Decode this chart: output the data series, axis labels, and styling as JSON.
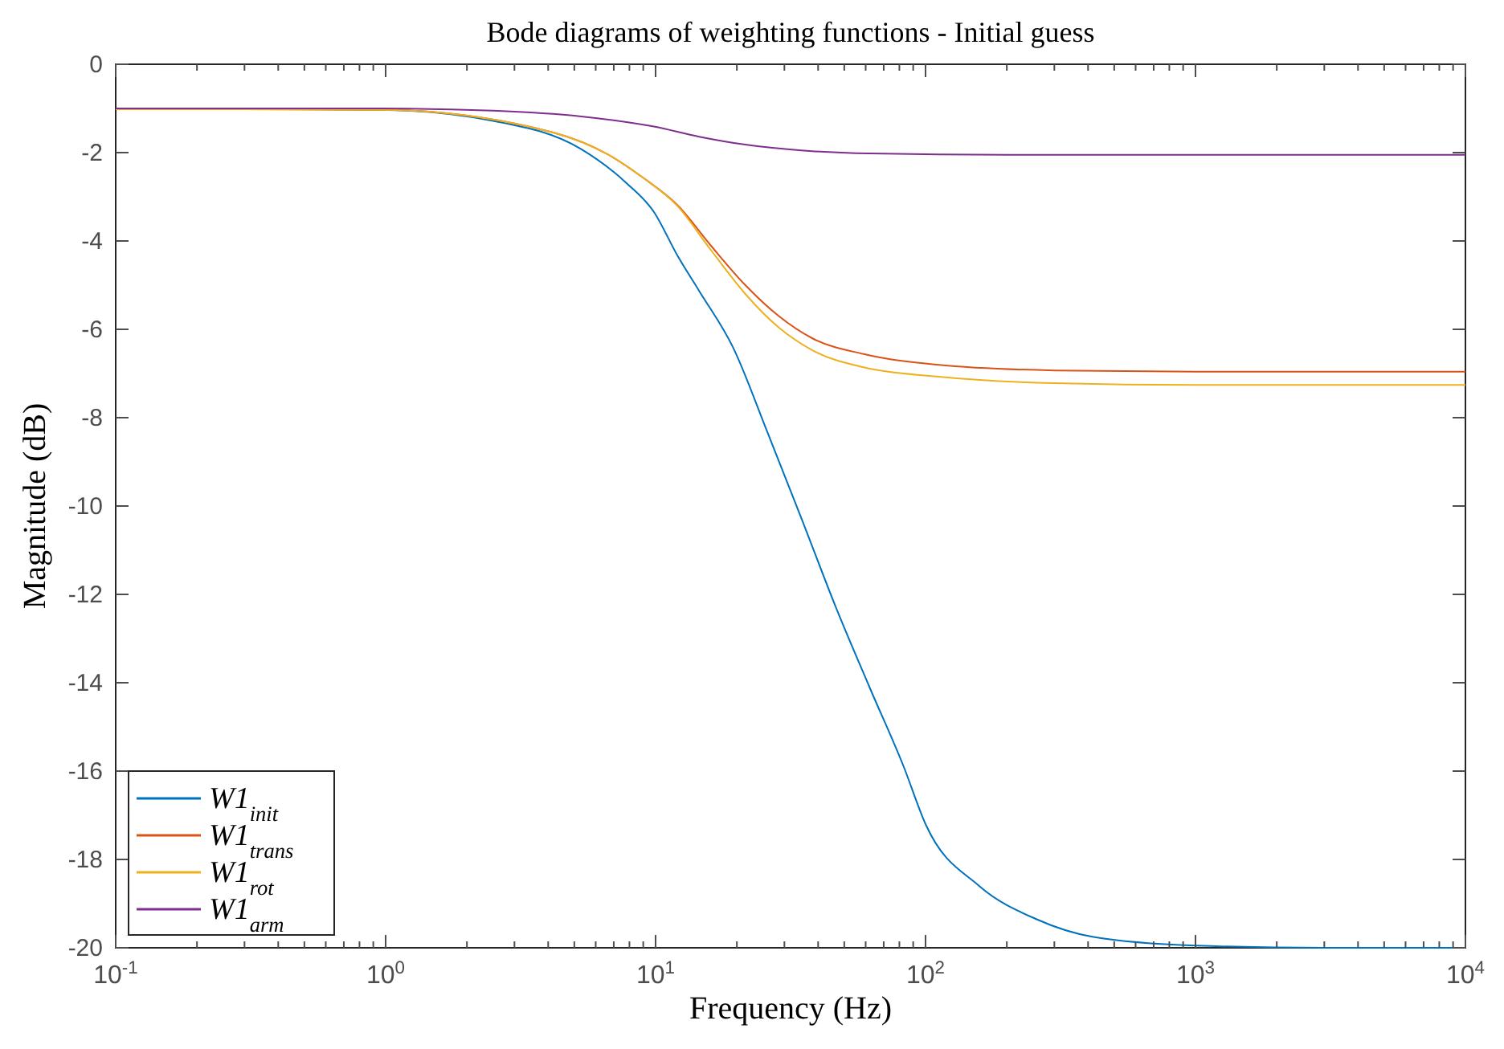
{
  "chart_data": {
    "type": "line",
    "title": "Bode diagrams of weighting functions - Initial guess",
    "xlabel": "Frequency (Hz)",
    "ylabel": "Magnitude (dB)",
    "log": "x",
    "xlim": [
      0.1,
      10000
    ],
    "ylim": [
      -20,
      0
    ],
    "xticks": [
      {
        "value": 0.1,
        "label": "10$^{-1}$"
      },
      {
        "value": 0.2,
        "label": null
      },
      {
        "value": 0.3,
        "label": null
      },
      {
        "value": 0.4,
        "label": null
      },
      {
        "value": 0.5,
        "label": null
      },
      {
        "value": 0.6,
        "label": null
      },
      {
        "value": 0.7,
        "label": null
      },
      {
        "value": 0.8,
        "label": null
      },
      {
        "value": 0.9,
        "label": null
      },
      {
        "value": 1,
        "label": "10$^{0}$"
      },
      {
        "value": 2,
        "label": null
      },
      {
        "value": 3,
        "label": null
      },
      {
        "value": 4,
        "label": null
      },
      {
        "value": 5,
        "label": null
      },
      {
        "value": 6,
        "label": null
      },
      {
        "value": 7,
        "label": null
      },
      {
        "value": 8,
        "label": null
      },
      {
        "value": 9,
        "label": null
      },
      {
        "value": 10,
        "label": "10$^{1}$"
      },
      {
        "value": 20,
        "label": null
      },
      {
        "value": 30,
        "label": null
      },
      {
        "value": 40,
        "label": null
      },
      {
        "value": 50,
        "label": null
      },
      {
        "value": 60,
        "label": null
      },
      {
        "value": 70,
        "label": null
      },
      {
        "value": 80,
        "label": null
      },
      {
        "value": 90,
        "label": null
      },
      {
        "value": 100,
        "label": "10$^{2}$"
      },
      {
        "value": 200,
        "label": null
      },
      {
        "value": 300,
        "label": null
      },
      {
        "value": 400,
        "label": null
      },
      {
        "value": 500,
        "label": null
      },
      {
        "value": 600,
        "label": null
      },
      {
        "value": 700,
        "label": null
      },
      {
        "value": 800,
        "label": null
      },
      {
        "value": 900,
        "label": null
      },
      {
        "value": 1000,
        "label": "10$^{3}$"
      },
      {
        "value": 2000,
        "label": null
      },
      {
        "value": 3000,
        "label": null
      },
      {
        "value": 4000,
        "label": null
      },
      {
        "value": 5000,
        "label": null
      },
      {
        "value": 6000,
        "label": null
      },
      {
        "value": 7000,
        "label": null
      },
      {
        "value": 8000,
        "label": null
      },
      {
        "value": 9000,
        "label": null
      },
      {
        "value": 10000,
        "label": "10$^{4}$"
      }
    ],
    "yticks": [
      0,
      -2,
      -4,
      -6,
      -8,
      -10,
      -12,
      -14,
      -16,
      -18,
      -20
    ],
    "grid": false,
    "legend": "bottom left",
    "series": [
      {
        "name": "W1$_{init}$",
        "color": "#0072bd",
        "x": [
          0.1,
          0.3,
          0.97,
          2.5,
          5.3,
          7.8,
          9.85,
          12.1,
          14.5,
          19.4,
          26,
          34.6,
          46.6,
          62,
          83,
          100,
          158,
          257,
          415,
          1000,
          3000,
          10000
        ],
        "values": [
          -1.0,
          -1.01,
          -1.03,
          -1.28,
          -1.92,
          -2.69,
          -3.34,
          -4.35,
          -5.13,
          -6.42,
          -8.34,
          -10.26,
          -12.3,
          -14.1,
          -15.9,
          -17.2,
          -18.6,
          -19.35,
          -19.75,
          -19.95,
          -20.0,
          -20.0
        ]
      },
      {
        "name": "W1$_{trans}$",
        "color": "#d95319",
        "x": [
          0.1,
          0.3,
          0.97,
          4.15,
          6.7,
          8.95,
          12.1,
          16,
          21.5,
          28.6,
          38,
          59,
          110,
          300,
          1000,
          10000
        ],
        "values": [
          -1.02,
          -1.02,
          -1.03,
          -1.54,
          -2.05,
          -2.56,
          -3.2,
          -4.1,
          -5.0,
          -5.7,
          -6.2,
          -6.56,
          -6.8,
          -6.93,
          -6.96,
          -6.96
        ]
      },
      {
        "name": "W1$_{rot}$",
        "color": "#edb120",
        "x": [
          0.1,
          0.3,
          0.97,
          4.15,
          6.7,
          8.95,
          12.1,
          16,
          21.5,
          28.6,
          38,
          59,
          110,
          300,
          1000,
          10000
        ],
        "values": [
          -1.02,
          -1.02,
          -1.03,
          -1.54,
          -2.05,
          -2.56,
          -3.22,
          -4.2,
          -5.2,
          -5.96,
          -6.47,
          -6.86,
          -7.07,
          -7.22,
          -7.26,
          -7.26
        ]
      },
      {
        "name": "W1$_{arm}$",
        "color": "#7e2f8e",
        "x": [
          0.1,
          0.97,
          2.5,
          5.3,
          9.85,
          14.5,
          21.5,
          34.6,
          62,
          200,
          1000,
          10000
        ],
        "values": [
          -1.0,
          -1.0,
          -1.05,
          -1.18,
          -1.41,
          -1.64,
          -1.82,
          -1.95,
          -2.02,
          -2.05,
          -2.05,
          -2.05
        ]
      }
    ]
  }
}
